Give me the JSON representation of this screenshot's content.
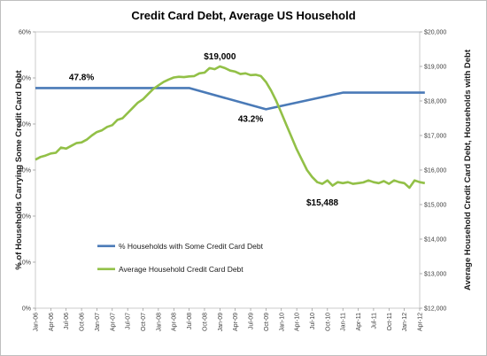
{
  "chart_data": {
    "type": "line",
    "title": "Credit Card Debt, Average US Household",
    "ylabel_left": "% of Households Carrying Some Credit Card Debt",
    "ylabel_right": "Average Household Credit Card Debt, Households with Debt",
    "left_axis": {
      "min": 0,
      "max": 60,
      "ticks": [
        "0%",
        "10%",
        "20%",
        "30%",
        "40%",
        "50%",
        "60%"
      ]
    },
    "right_axis": {
      "min": 12000,
      "max": 20000,
      "ticks": [
        "$12,000",
        "$13,000",
        "$14,000",
        "$15,000",
        "$16,000",
        "$17,000",
        "$18,000",
        "$19,000",
        "$20,000"
      ]
    },
    "x_tick_labels": [
      "Jan-06",
      "Apr-06",
      "Jul-06",
      "Oct-06",
      "Jan-07",
      "Apr-07",
      "Jul-07",
      "Oct-07",
      "Jan-08",
      "Apr-08",
      "Jul-08",
      "Oct-08",
      "Jan-09",
      "Apr-09",
      "Jul-09",
      "Oct-09",
      "Jan-10",
      "Apr-10",
      "Jul-10",
      "Oct-10",
      "Jan-11",
      "Apr-11",
      "Jul-11",
      "Oct-11",
      "Jan-12",
      "Apr-12"
    ],
    "series": [
      {
        "name": "% Households with Some Credit Card Debt",
        "axis": "left",
        "color": "#4a7ab7",
        "points": [
          [
            0,
            47.8
          ],
          [
            30,
            47.8
          ],
          [
            45,
            43.2
          ],
          [
            60,
            46.8
          ],
          [
            76,
            46.8
          ]
        ]
      },
      {
        "name": "Average Household Credit Card Debt",
        "axis": "right",
        "color": "#92c047",
        "values": [
          16300,
          16380,
          16420,
          16480,
          16500,
          16650,
          16620,
          16700,
          16780,
          16800,
          16880,
          17000,
          17100,
          17150,
          17250,
          17300,
          17450,
          17500,
          17650,
          17800,
          17950,
          18050,
          18200,
          18350,
          18450,
          18550,
          18620,
          18680,
          18700,
          18690,
          18710,
          18720,
          18800,
          18820,
          18950,
          18920,
          19000,
          18950,
          18880,
          18850,
          18780,
          18800,
          18750,
          18760,
          18720,
          18550,
          18300,
          18000,
          17650,
          17300,
          16950,
          16600,
          16300,
          16000,
          15800,
          15650,
          15600,
          15700,
          15550,
          15650,
          15620,
          15650,
          15600,
          15620,
          15640,
          15700,
          15650,
          15620,
          15680,
          15600,
          15700,
          15650,
          15620,
          15488,
          15700,
          15650,
          15620
        ]
      }
    ],
    "annotations": [
      "47.8%",
      "43.2%",
      "$19,000",
      "$15,488"
    ],
    "legend": {
      "position": "bottom-left-inside"
    },
    "grid": false
  }
}
